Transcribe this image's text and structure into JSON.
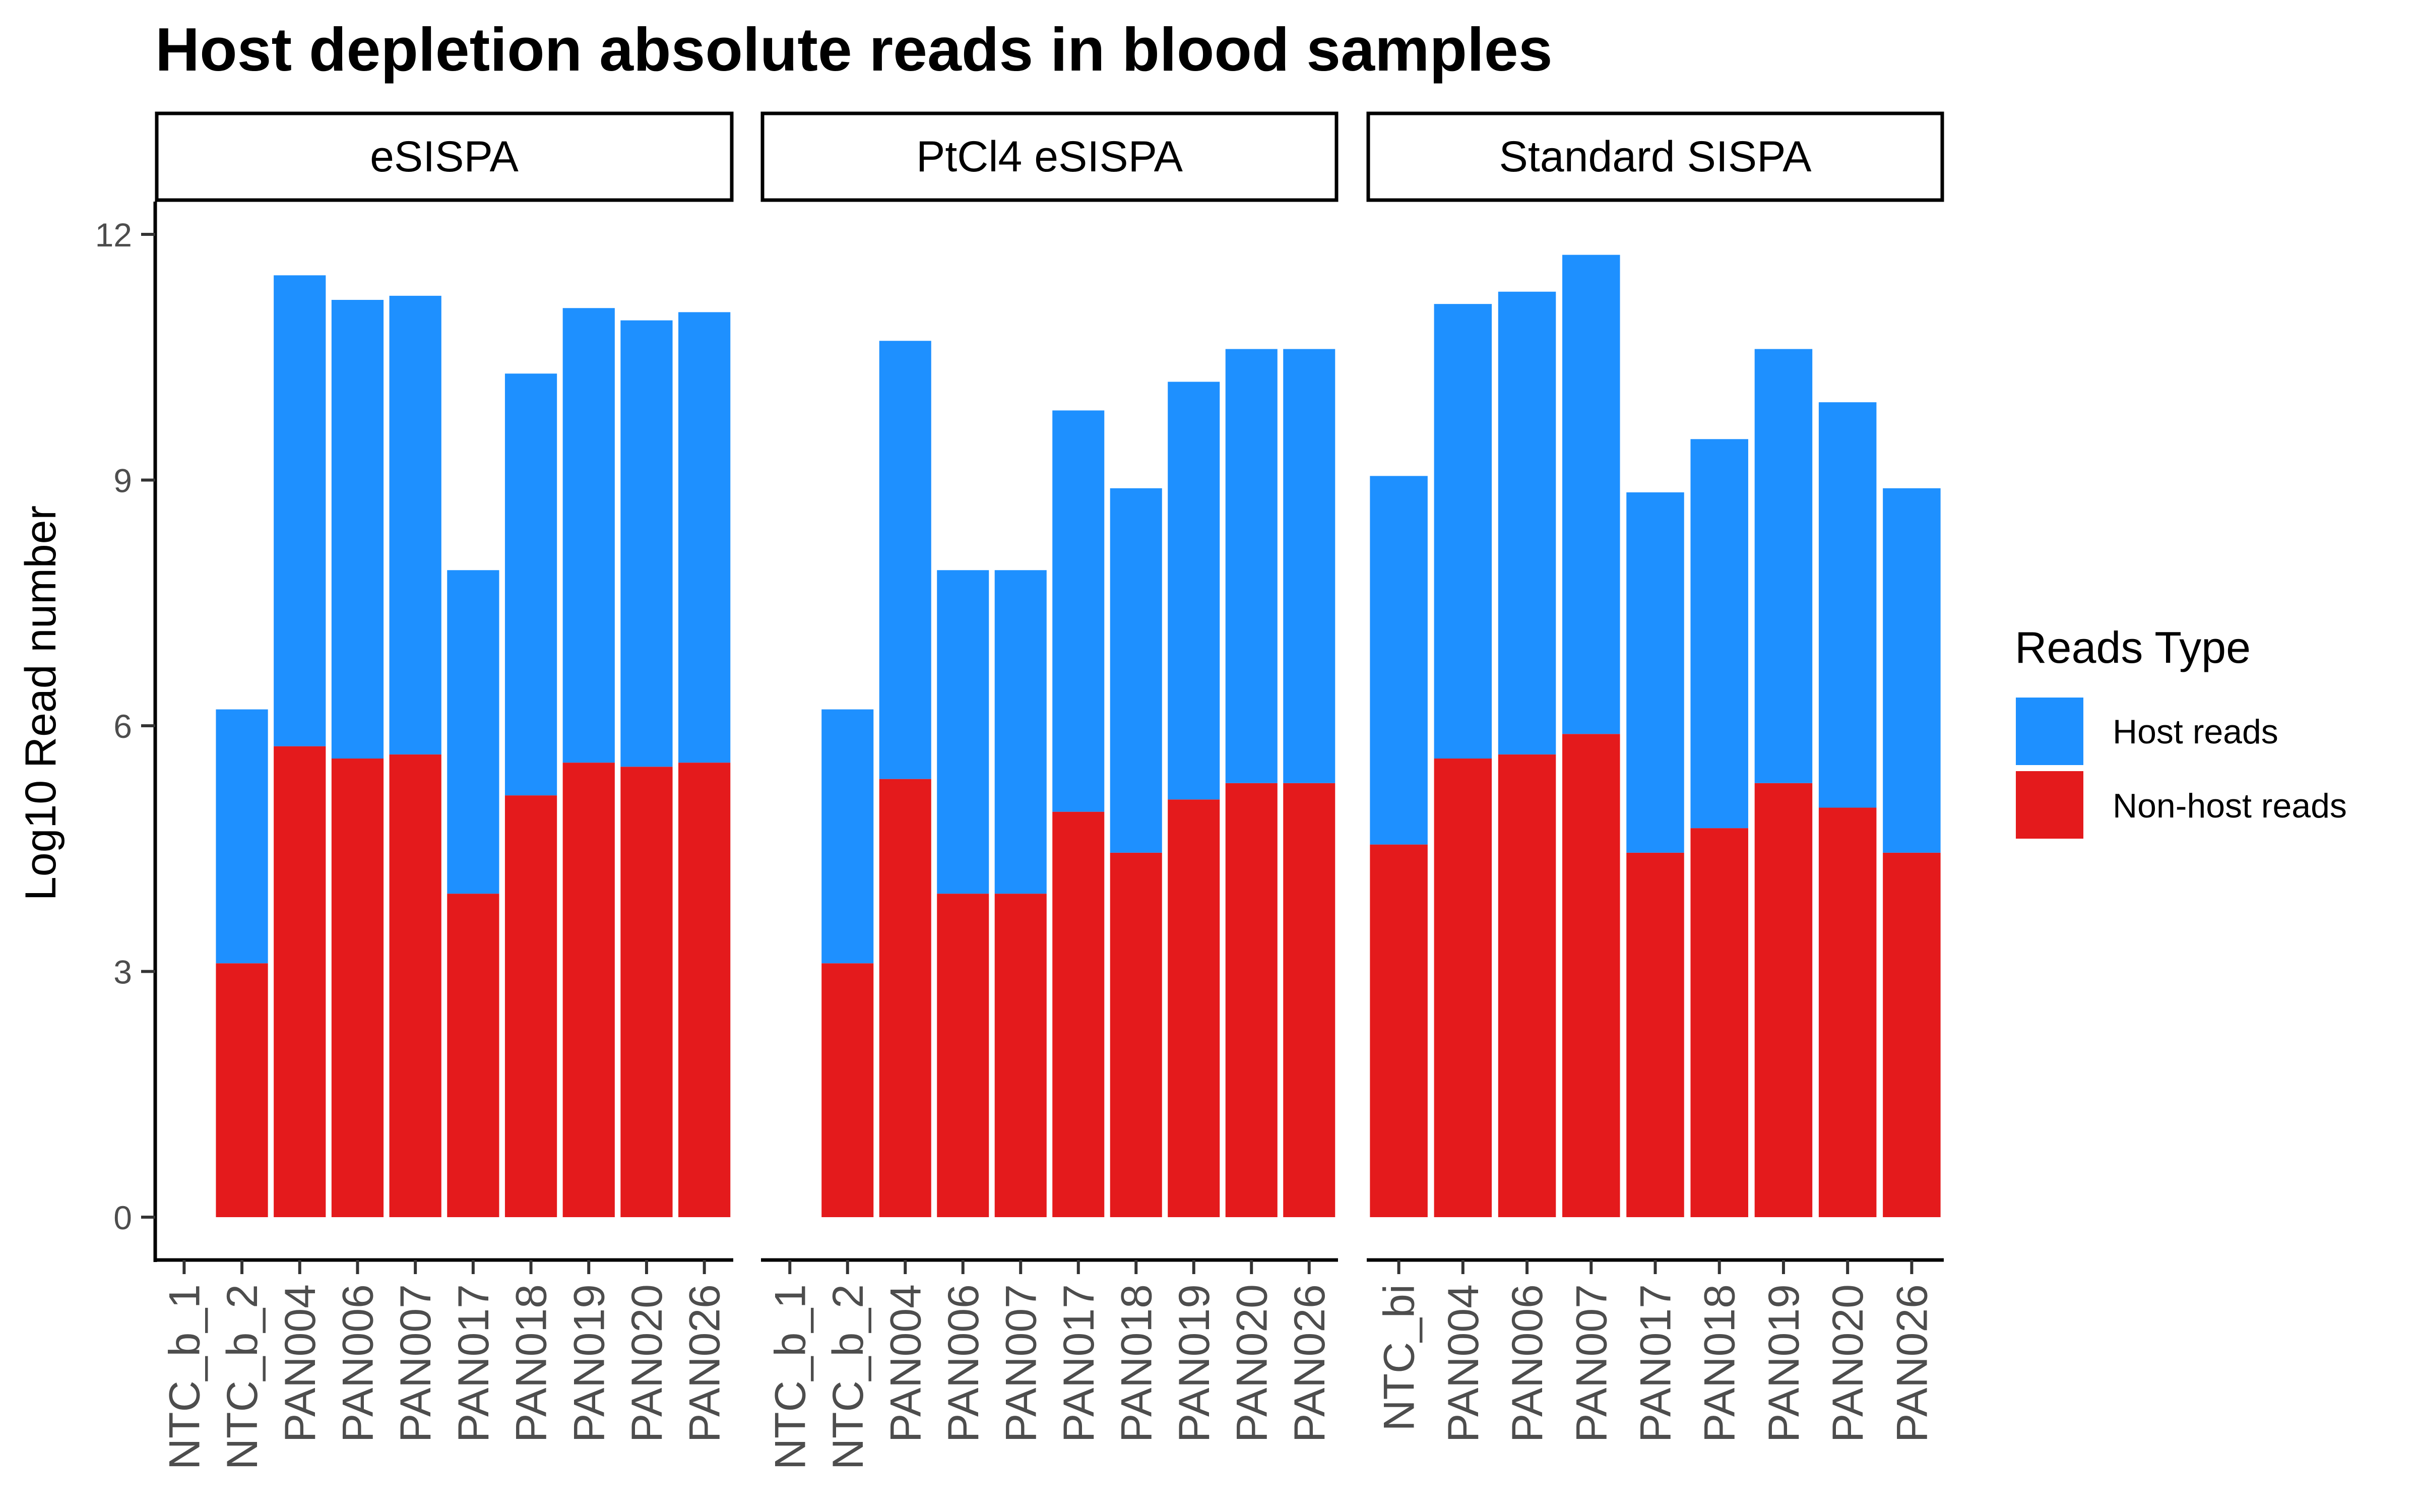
{
  "chart_data": {
    "type": "bar",
    "stacked": true,
    "title": "Host depletion absolute reads in blood samples",
    "ylabel": "Log10 Read number",
    "ylim": [
      0,
      12.5
    ],
    "yticks": [
      "0",
      "3",
      "6",
      "9",
      "12"
    ],
    "legend": {
      "title": "Reads Type",
      "position": "right",
      "entries": [
        "Host reads",
        "Non-host reads"
      ]
    },
    "colors": {
      "host": "#1E90FF",
      "nonhost": "#E41A1C"
    },
    "grid": false,
    "panels": [
      {
        "name": "eSISPA",
        "categories": [
          "NTC_b_1",
          "NTC_b_2",
          "PAN004",
          "PAN006",
          "PAN007",
          "PAN017",
          "PAN018",
          "PAN019",
          "PAN020",
          "PAN026"
        ],
        "series": [
          {
            "name": "Non-host reads",
            "values": [
              null,
              3.1,
              5.75,
              5.6,
              5.65,
              3.95,
              5.15,
              5.55,
              5.5,
              5.55
            ]
          },
          {
            "name": "Host reads",
            "values": [
              null,
              3.1,
              5.75,
              5.6,
              5.6,
              3.95,
              5.15,
              5.55,
              5.45,
              5.5
            ]
          }
        ]
      },
      {
        "name": "PtCl4 eSISPA",
        "categories": [
          "NTC_b_1",
          "NTC_b_2",
          "PAN004",
          "PAN006",
          "PAN007",
          "PAN017",
          "PAN018",
          "PAN019",
          "PAN020",
          "PAN026"
        ],
        "series": [
          {
            "name": "Non-host reads",
            "values": [
              null,
              3.1,
              5.35,
              3.95,
              3.95,
              4.95,
              4.45,
              5.1,
              5.3,
              5.3
            ]
          },
          {
            "name": "Host reads",
            "values": [
              null,
              3.1,
              5.35,
              3.95,
              3.95,
              4.9,
              4.45,
              5.1,
              5.3,
              5.3
            ]
          }
        ]
      },
      {
        "name": "Standard SISPA",
        "categories": [
          "NTC_bi",
          "PAN004",
          "PAN006",
          "PAN007",
          "PAN017",
          "PAN018",
          "PAN019",
          "PAN020",
          "PAN026"
        ],
        "series": [
          {
            "name": "Non-host reads",
            "values": [
              4.55,
              5.6,
              5.65,
              5.9,
              4.45,
              4.75,
              5.3,
              5.0,
              4.45
            ]
          },
          {
            "name": "Host reads",
            "values": [
              4.5,
              5.55,
              5.65,
              5.85,
              4.4,
              4.75,
              5.3,
              4.95,
              4.45
            ]
          }
        ]
      }
    ]
  }
}
